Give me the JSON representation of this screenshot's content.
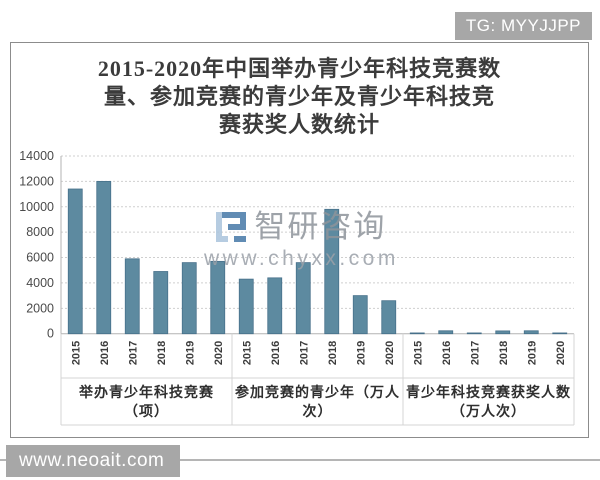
{
  "badges": {
    "tg": "TG: MYYJJPP",
    "site": "www.neoait.com",
    "bg_color": "#a7a7a7"
  },
  "watermark": {
    "name": "智研咨询",
    "url": "www.chyxx.com",
    "logo_dark": "#4679a8",
    "logo_light": "#aac4dc"
  },
  "chart_data": {
    "type": "bar",
    "title": "2015-2020年中国举办青少年科技竞赛数量、参加竞赛的青少年及青少年科技竞赛获奖人数统计",
    "title_lines": [
      "2015-2020年中国举办青少年科技竞赛数",
      "量、参加竞赛的青少年及青少年科技竞",
      "赛获奖人数统计"
    ],
    "categories": [
      "2015",
      "2016",
      "2017",
      "2018",
      "2019",
      "2020"
    ],
    "series": [
      {
        "name": "举办青少年科技竞赛（项）",
        "name_lines": [
          "举办青少年科技竞赛",
          "（项）"
        ],
        "values": [
          11400,
          12000,
          5900,
          4900,
          5600,
          5700
        ]
      },
      {
        "name": "参加竞赛的青少年（万人次）",
        "name_lines": [
          "参加竞赛的青少年（万人",
          "次）"
        ],
        "values": [
          4300,
          4400,
          5600,
          9800,
          3000,
          2600
        ]
      },
      {
        "name": "青少年科技竞赛获奖人数（万人次）",
        "name_lines": [
          "青少年科技竞赛获奖人数",
          "（万人次）"
        ],
        "values": [
          60,
          230,
          60,
          220,
          230,
          60
        ]
      }
    ],
    "ylim": [
      0,
      14000
    ],
    "ytick_step": 2000,
    "grid": "dotted-horizontal",
    "legend": "none",
    "bar_color": "#5d8aa0",
    "bar_border": "#47708a",
    "x_axis_style": "year labels rotated 90°, grouped into three labeled sections"
  }
}
